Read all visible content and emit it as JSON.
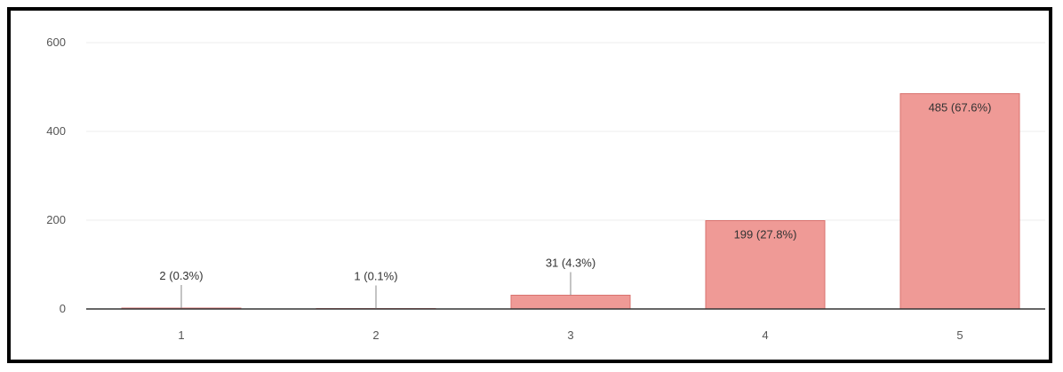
{
  "chart_data": {
    "type": "bar",
    "categories": [
      "1",
      "2",
      "3",
      "4",
      "5"
    ],
    "values": [
      2,
      1,
      31,
      199,
      485
    ],
    "data_labels": [
      "2 (0.3%)",
      "1 (0.1%)",
      "31 (4.3%)",
      "199 (27.8%)",
      "485 (67.6%)"
    ],
    "yticks": [
      0,
      200,
      400,
      600
    ],
    "ylim": [
      0,
      600
    ],
    "grid": true,
    "legend": "none",
    "colors": {
      "bar": "#ef9a96",
      "bar_edge": "#d9736f",
      "gridline": "#eeeeee",
      "axis": "#333333",
      "leader": "#888888"
    }
  }
}
